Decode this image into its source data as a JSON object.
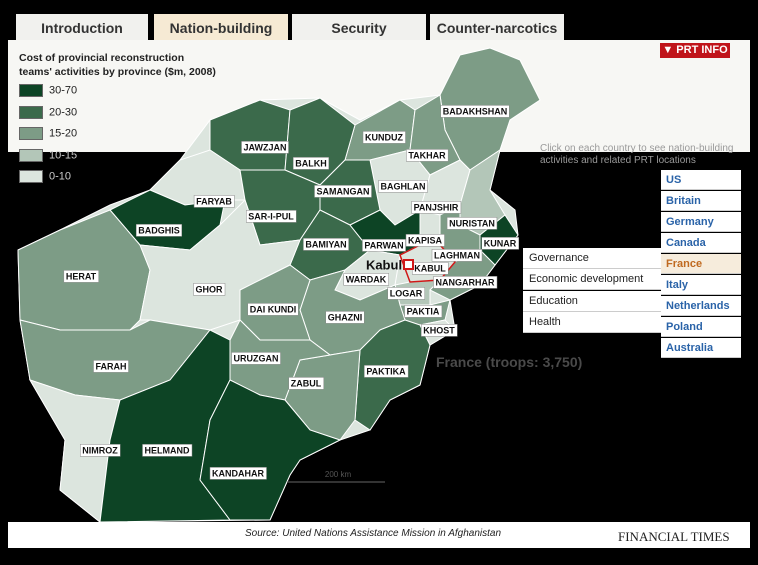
{
  "tabs": {
    "items": [
      "Introduction",
      "Nation-building",
      "Security",
      "Counter-narcotics"
    ],
    "active": 1
  },
  "prt_info": "PRT INFO",
  "legend": {
    "title": "Cost of provincial reconstruction teams' activities by province ($m, 2008)",
    "items": [
      {
        "label": "30-70",
        "color": "#0d4425"
      },
      {
        "label": "20-30",
        "color": "#3b6a4b"
      },
      {
        "label": "15-20",
        "color": "#7d9c86"
      },
      {
        "label": "10-15",
        "color": "#b3c6b8"
      },
      {
        "label": "0-10",
        "color": "#dce5de"
      }
    ]
  },
  "instructions": "Click on each country to see nation-building activities and related PRT locations",
  "countries": {
    "items": [
      "US",
      "Britain",
      "Germany",
      "Canada",
      "France",
      "Italy",
      "Netherlands",
      "Poland",
      "Australia"
    ],
    "selected": 4
  },
  "activities": [
    "Governance",
    "Economic development",
    "Education",
    "Health"
  ],
  "selection_summary": "France (troops: 3,750)",
  "map": {
    "capital": "Kabul",
    "scale_label": "200 km",
    "provinces": [
      {
        "name": "BADAKHSHAN",
        "color": "#7d9c86"
      },
      {
        "name": "KUNDUZ",
        "color": "#7d9c86"
      },
      {
        "name": "TAKHAR",
        "color": "#7d9c86"
      },
      {
        "name": "BAGHLAN",
        "color": "#dce5de"
      },
      {
        "name": "JAWZJAN",
        "color": "#3b6a4b"
      },
      {
        "name": "BALKH",
        "color": "#3b6a4b"
      },
      {
        "name": "SAMANGAN",
        "color": "#3b6a4b"
      },
      {
        "name": "FARYAB",
        "color": "#dce5de"
      },
      {
        "name": "SAR-I-PUL",
        "color": "#3b6a4b"
      },
      {
        "name": "BADGHIS",
        "color": "#0d4425"
      },
      {
        "name": "BAMIYAN",
        "color": "#3b6a4b"
      },
      {
        "name": "PANJSHIR",
        "color": "#dce5de"
      },
      {
        "name": "NURISTAN",
        "color": "#b3c6b8"
      },
      {
        "name": "KUNAR",
        "color": "#0d4425"
      },
      {
        "name": "LAGHMAN",
        "color": "#7d9c86"
      },
      {
        "name": "KAPISA",
        "color": "#dce5de"
      },
      {
        "name": "PARWAN",
        "color": "#0d4425"
      },
      {
        "name": "KABUL",
        "color": "#dce5de"
      },
      {
        "name": "WARDAK",
        "color": "#dce5de"
      },
      {
        "name": "LOGAR",
        "color": "#b3c6b8"
      },
      {
        "name": "NANGARHAR",
        "color": "#7d9c86"
      },
      {
        "name": "PAKTIA",
        "color": "#7d9c86"
      },
      {
        "name": "KHOST",
        "color": "#dce5de"
      },
      {
        "name": "GHAZNI",
        "color": "#7d9c86"
      },
      {
        "name": "PAKTIKA",
        "color": "#3b6a4b"
      },
      {
        "name": "ZABUL",
        "color": "#7d9c86"
      },
      {
        "name": "HERAT",
        "color": "#7d9c86"
      },
      {
        "name": "GHOR",
        "color": "#dce5de"
      },
      {
        "name": "DAI KUNDI",
        "color": "#7d9c86"
      },
      {
        "name": "URUZGAN",
        "color": "#7d9c86"
      },
      {
        "name": "FARAH",
        "color": "#7d9c86"
      },
      {
        "name": "NIMROZ",
        "color": "#dce5de"
      },
      {
        "name": "HELMAND",
        "color": "#0d4425"
      },
      {
        "name": "KANDAHAR",
        "color": "#0d4425"
      }
    ]
  },
  "source": "Source: United Nations Assistance Mission in Afghanistan",
  "publisher": "FINANCIAL TIMES"
}
